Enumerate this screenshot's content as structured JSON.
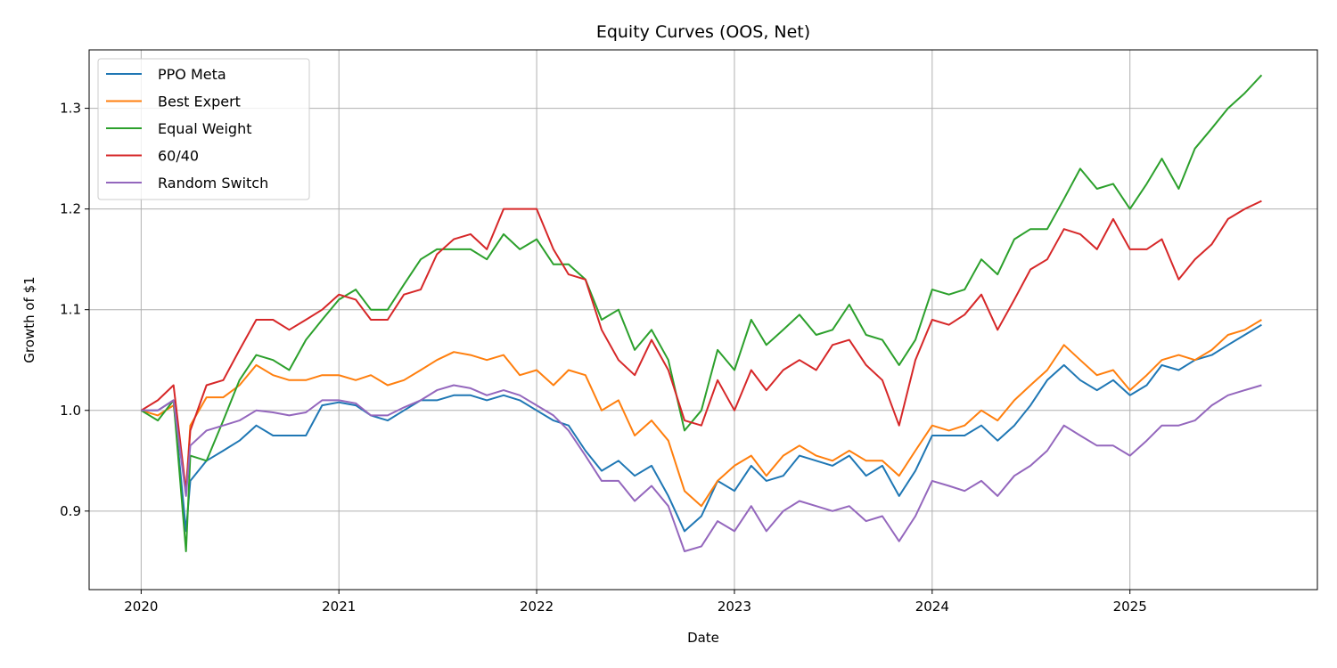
{
  "chart_data": {
    "type": "line",
    "title": "Equity Curves (OOS, Net)",
    "xlabel": "Date",
    "ylabel": "Growth of $1",
    "xlim": [
      "2019-09-27",
      "2025-12-13"
    ],
    "ylim": [
      0.822,
      1.358
    ],
    "x_ticks": [
      "2020",
      "2021",
      "2022",
      "2023",
      "2024",
      "2025"
    ],
    "y_ticks": [
      "0.9",
      "1.0",
      "1.1",
      "1.2",
      "1.3"
    ],
    "grid": true,
    "legend_position": "top-left",
    "x": [
      "2020-01-01",
      "2020-02-01",
      "2020-03-01",
      "2020-03-24",
      "2020-04-01",
      "2020-05-01",
      "2020-06-01",
      "2020-07-01",
      "2020-08-01",
      "2020-09-01",
      "2020-10-01",
      "2020-11-01",
      "2020-12-01",
      "2021-01-01",
      "2021-02-01",
      "2021-03-01",
      "2021-04-01",
      "2021-05-01",
      "2021-06-01",
      "2021-07-01",
      "2021-08-01",
      "2021-09-01",
      "2021-10-01",
      "2021-11-01",
      "2021-12-01",
      "2022-01-01",
      "2022-02-01",
      "2022-03-01",
      "2022-04-01",
      "2022-05-01",
      "2022-06-01",
      "2022-07-01",
      "2022-08-01",
      "2022-09-01",
      "2022-10-01",
      "2022-11-01",
      "2022-12-01",
      "2023-01-01",
      "2023-02-01",
      "2023-03-01",
      "2023-04-01",
      "2023-05-01",
      "2023-06-01",
      "2023-07-01",
      "2023-08-01",
      "2023-09-01",
      "2023-10-01",
      "2023-11-01",
      "2023-12-01",
      "2024-01-01",
      "2024-02-01",
      "2024-03-01",
      "2024-04-01",
      "2024-05-01",
      "2024-06-01",
      "2024-07-01",
      "2024-08-01",
      "2024-09-01",
      "2024-10-01",
      "2024-11-01",
      "2024-12-01",
      "2025-01-01",
      "2025-02-01",
      "2025-03-01",
      "2025-04-01",
      "2025-05-01",
      "2025-06-01",
      "2025-07-01",
      "2025-08-01",
      "2025-09-01"
    ],
    "series": [
      {
        "name": "PPO Meta",
        "color": "#1f77b4",
        "values": [
          1.0,
          1.0,
          1.01,
          0.88,
          0.93,
          0.95,
          0.96,
          0.97,
          0.985,
          0.975,
          0.975,
          0.975,
          1.005,
          1.008,
          1.005,
          0.995,
          0.99,
          1.0,
          1.01,
          1.01,
          1.015,
          1.015,
          1.01,
          1.015,
          1.01,
          1.0,
          0.99,
          0.985,
          0.96,
          0.94,
          0.95,
          0.935,
          0.945,
          0.915,
          0.88,
          0.895,
          0.93,
          0.92,
          0.945,
          0.93,
          0.935,
          0.955,
          0.95,
          0.945,
          0.955,
          0.935,
          0.945,
          0.915,
          0.94,
          0.975,
          0.975,
          0.975,
          0.985,
          0.97,
          0.985,
          1.005,
          1.03,
          1.045,
          1.03,
          1.02,
          1.03,
          1.015,
          1.025,
          1.045,
          1.04,
          1.05,
          1.055,
          1.065,
          1.075,
          1.085
        ]
      },
      {
        "name": "Best Expert",
        "color": "#ff7f0e",
        "values": [
          1.0,
          0.995,
          1.005,
          0.92,
          0.985,
          1.013,
          1.013,
          1.025,
          1.045,
          1.035,
          1.03,
          1.03,
          1.035,
          1.035,
          1.03,
          1.035,
          1.025,
          1.03,
          1.04,
          1.05,
          1.058,
          1.055,
          1.05,
          1.055,
          1.035,
          1.04,
          1.025,
          1.04,
          1.035,
          1.0,
          1.01,
          0.975,
          0.99,
          0.97,
          0.92,
          0.905,
          0.93,
          0.945,
          0.955,
          0.935,
          0.955,
          0.965,
          0.955,
          0.95,
          0.96,
          0.95,
          0.95,
          0.935,
          0.96,
          0.985,
          0.98,
          0.985,
          1.0,
          0.99,
          1.01,
          1.025,
          1.04,
          1.065,
          1.05,
          1.035,
          1.04,
          1.02,
          1.035,
          1.05,
          1.055,
          1.05,
          1.06,
          1.075,
          1.08,
          1.09
        ]
      },
      {
        "name": "Equal Weight",
        "color": "#2ca02c",
        "values": [
          1.0,
          0.99,
          1.01,
          0.86,
          0.955,
          0.95,
          0.99,
          1.03,
          1.055,
          1.05,
          1.04,
          1.07,
          1.09,
          1.11,
          1.12,
          1.1,
          1.1,
          1.125,
          1.15,
          1.16,
          1.16,
          1.16,
          1.15,
          1.175,
          1.16,
          1.17,
          1.145,
          1.145,
          1.13,
          1.09,
          1.1,
          1.06,
          1.08,
          1.05,
          0.98,
          1.0,
          1.06,
          1.04,
          1.09,
          1.065,
          1.08,
          1.095,
          1.075,
          1.08,
          1.105,
          1.075,
          1.07,
          1.045,
          1.07,
          1.12,
          1.115,
          1.12,
          1.15,
          1.135,
          1.17,
          1.18,
          1.18,
          1.21,
          1.24,
          1.22,
          1.225,
          1.2,
          1.225,
          1.25,
          1.22,
          1.26,
          1.28,
          1.3,
          1.315,
          1.333
        ]
      },
      {
        "name": "60/40",
        "color": "#d62728",
        "values": [
          1.0,
          1.01,
          1.025,
          0.92,
          0.98,
          1.025,
          1.03,
          1.06,
          1.09,
          1.09,
          1.08,
          1.09,
          1.1,
          1.115,
          1.11,
          1.09,
          1.09,
          1.115,
          1.12,
          1.155,
          1.17,
          1.175,
          1.16,
          1.2,
          1.2,
          1.2,
          1.16,
          1.135,
          1.13,
          1.08,
          1.05,
          1.035,
          1.07,
          1.04,
          0.99,
          0.985,
          1.03,
          1.0,
          1.04,
          1.02,
          1.04,
          1.05,
          1.04,
          1.065,
          1.07,
          1.045,
          1.03,
          0.985,
          1.05,
          1.09,
          1.085,
          1.095,
          1.115,
          1.08,
          1.11,
          1.14,
          1.15,
          1.18,
          1.175,
          1.16,
          1.19,
          1.16,
          1.16,
          1.17,
          1.13,
          1.15,
          1.165,
          1.19,
          1.2,
          1.208
        ]
      },
      {
        "name": "Random Switch",
        "color": "#9467bd",
        "values": [
          1.0,
          1.0,
          1.01,
          0.915,
          0.965,
          0.98,
          0.985,
          0.99,
          1.0,
          0.998,
          0.995,
          0.998,
          1.01,
          1.01,
          1.007,
          0.995,
          0.995,
          1.003,
          1.01,
          1.02,
          1.025,
          1.022,
          1.015,
          1.02,
          1.015,
          1.005,
          0.995,
          0.98,
          0.955,
          0.93,
          0.93,
          0.91,
          0.925,
          0.905,
          0.86,
          0.865,
          0.89,
          0.88,
          0.905,
          0.88,
          0.9,
          0.91,
          0.905,
          0.9,
          0.905,
          0.89,
          0.895,
          0.87,
          0.895,
          0.93,
          0.925,
          0.92,
          0.93,
          0.915,
          0.935,
          0.945,
          0.96,
          0.985,
          0.975,
          0.965,
          0.965,
          0.955,
          0.97,
          0.985,
          0.985,
          0.99,
          1.005,
          1.015,
          1.02,
          1.025
        ]
      }
    ]
  }
}
